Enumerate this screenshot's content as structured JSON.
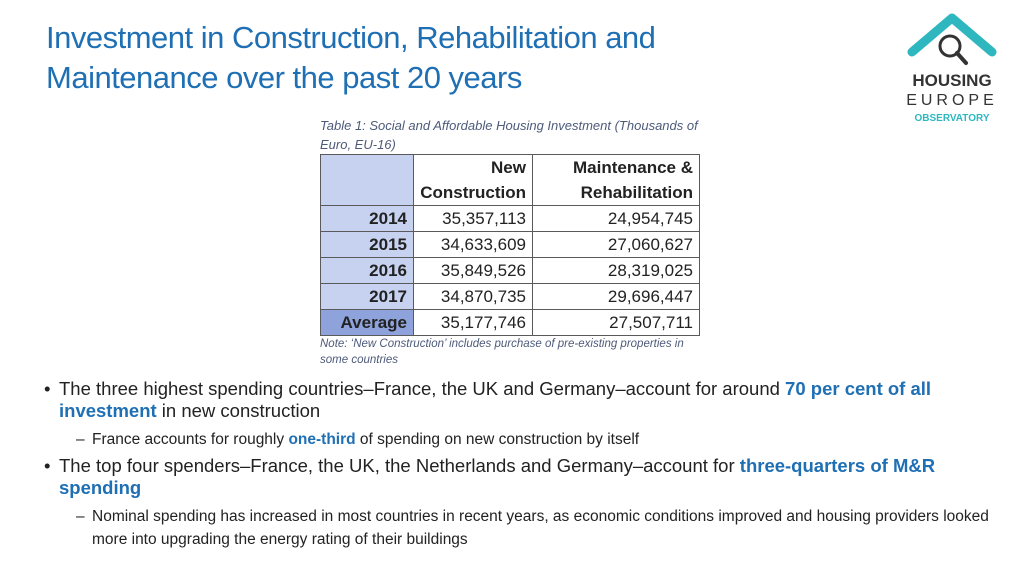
{
  "title": {
    "line1": "Investment in Construction, Rehabilitation and",
    "line2": "Maintenance over the past 20 years"
  },
  "logo": {
    "line1": "HOUSING",
    "line2": "EUROPE",
    "line3": "OBSERVATORY",
    "icon": "house-magnifier-icon",
    "color": "#2fb7c0"
  },
  "table": {
    "caption": "Table 1: Social and Affordable Housing Investment (Thousands of Euro, EU-16)",
    "headers": [
      "",
      "New Construction",
      "Maintenance & Rehabilitation"
    ],
    "header_lines": {
      "col1": [
        "New",
        "Construction"
      ],
      "col2": [
        "Maintenance &",
        "Rehabilitation"
      ]
    },
    "rows": [
      {
        "year": "2014",
        "new": "35,357,113",
        "mr": "24,954,745"
      },
      {
        "year": "2015",
        "new": "34,633,609",
        "mr": "27,060,627"
      },
      {
        "year": "2016",
        "new": "35,849,526",
        "mr": "28,319,025"
      },
      {
        "year": "2017",
        "new": "34,870,735",
        "mr": "29,696,447"
      },
      {
        "year": "Average",
        "new": "35,177,746",
        "mr": "27,507,711"
      }
    ],
    "note": "Note: ‘New Construction’ includes purchase of pre-existing properties in some countries"
  },
  "bullets": [
    {
      "pre": "The three highest spending countries–France, the UK and Germany–account for around ",
      "highlight": "70 per cent of all investment",
      "post": " in new construction",
      "sub": {
        "pre": "France accounts for roughly ",
        "highlight": "one-third",
        "post": " of spending on new construction by itself"
      }
    },
    {
      "pre": "The top four spenders–France, the UK, the Netherlands and Germany–account for ",
      "highlight": "three-quarters of M&R spending",
      "post": "",
      "sub": {
        "text": "Nominal spending has increased in most countries in recent years, as economic conditions improved and housing providers looked more into upgrading the energy rating of their buildings"
      }
    }
  ],
  "colors": {
    "accent": "#1f6fb4",
    "year_cell": "#c6d2f0",
    "average_cell": "#8ea3dc",
    "logo_teal": "#2fb7c0"
  }
}
